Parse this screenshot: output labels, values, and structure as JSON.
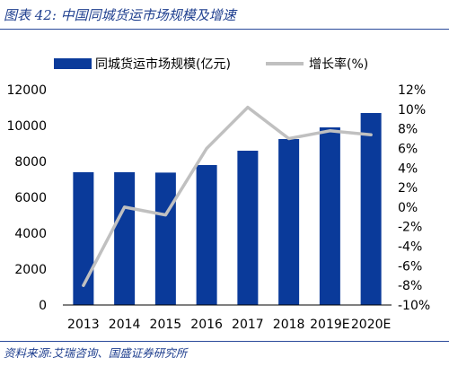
{
  "figure": {
    "caption": "图表 42:  中国同城货运市场规模及增速",
    "source": "资料来源:艾瑞咨询、国盛证券研究所"
  },
  "chart_data": {
    "type": "bar",
    "categories": [
      "2013",
      "2014",
      "2015",
      "2016",
      "2017",
      "2018",
      "2019E",
      "2020E"
    ],
    "series": [
      {
        "name": "同城货运市场规模(亿元)",
        "type": "bar",
        "axis": "left",
        "color": "#0a3a9a",
        "values": [
          7400,
          7400,
          7380,
          7800,
          8600,
          9250,
          9900,
          10700
        ]
      },
      {
        "name": "增长率(%)",
        "type": "line",
        "axis": "right",
        "color": "#c0c0c0",
        "values": [
          -8.0,
          0.0,
          -0.8,
          6.0,
          10.2,
          7.0,
          7.8,
          7.4
        ]
      }
    ],
    "y_left": {
      "min": 0,
      "max": 12000,
      "ticks": [
        0,
        2000,
        4000,
        6000,
        8000,
        10000,
        12000
      ]
    },
    "y_right": {
      "min": -10,
      "max": 12,
      "ticks": [
        "-10%",
        "-8%",
        "-6%",
        "-4%",
        "-2%",
        "0%",
        "2%",
        "4%",
        "6%",
        "8%",
        "10%",
        "12%"
      ]
    },
    "legend_position": "top",
    "grid": false
  }
}
